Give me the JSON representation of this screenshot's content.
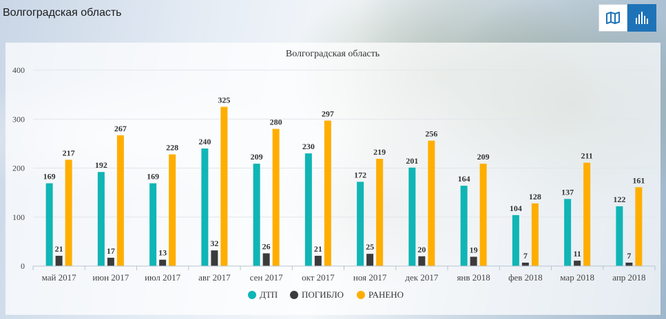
{
  "header": {
    "title": "Волгоградская область"
  },
  "view_toggle": {
    "active": "chart",
    "icons": [
      "map-icon",
      "bar-chart-icon"
    ]
  },
  "colors": {
    "dtp": "#10b5b5",
    "killed": "#3b3b3b",
    "injured": "#ffae00",
    "toggle_active": "#1e73b8"
  },
  "chart_data": {
    "type": "bar",
    "title": "Волгоградская область",
    "categories": [
      "май 2017",
      "июн 2017",
      "июл 2017",
      "авг 2017",
      "сен 2017",
      "окт 2017",
      "ноя 2017",
      "дек 2017",
      "янв 2018",
      "фев 2018",
      "мар 2018",
      "апр 2018"
    ],
    "series": [
      {
        "name": "ДТП",
        "color": "#10b5b5",
        "values": [
          169,
          192,
          169,
          240,
          209,
          230,
          172,
          201,
          164,
          104,
          137,
          122
        ]
      },
      {
        "name": "ПОГИБЛО",
        "color": "#3b3b3b",
        "values": [
          21,
          17,
          13,
          32,
          26,
          21,
          25,
          20,
          19,
          7,
          11,
          7
        ]
      },
      {
        "name": "РАНЕНО",
        "color": "#ffae00",
        "values": [
          217,
          267,
          228,
          325,
          280,
          297,
          219,
          256,
          209,
          128,
          211,
          161
        ]
      }
    ],
    "yticks": [
      0,
      100,
      200,
      300,
      400
    ],
    "ylim": [
      0,
      400
    ],
    "grid": true,
    "legend_position": "bottom-center",
    "data_labels": true
  }
}
